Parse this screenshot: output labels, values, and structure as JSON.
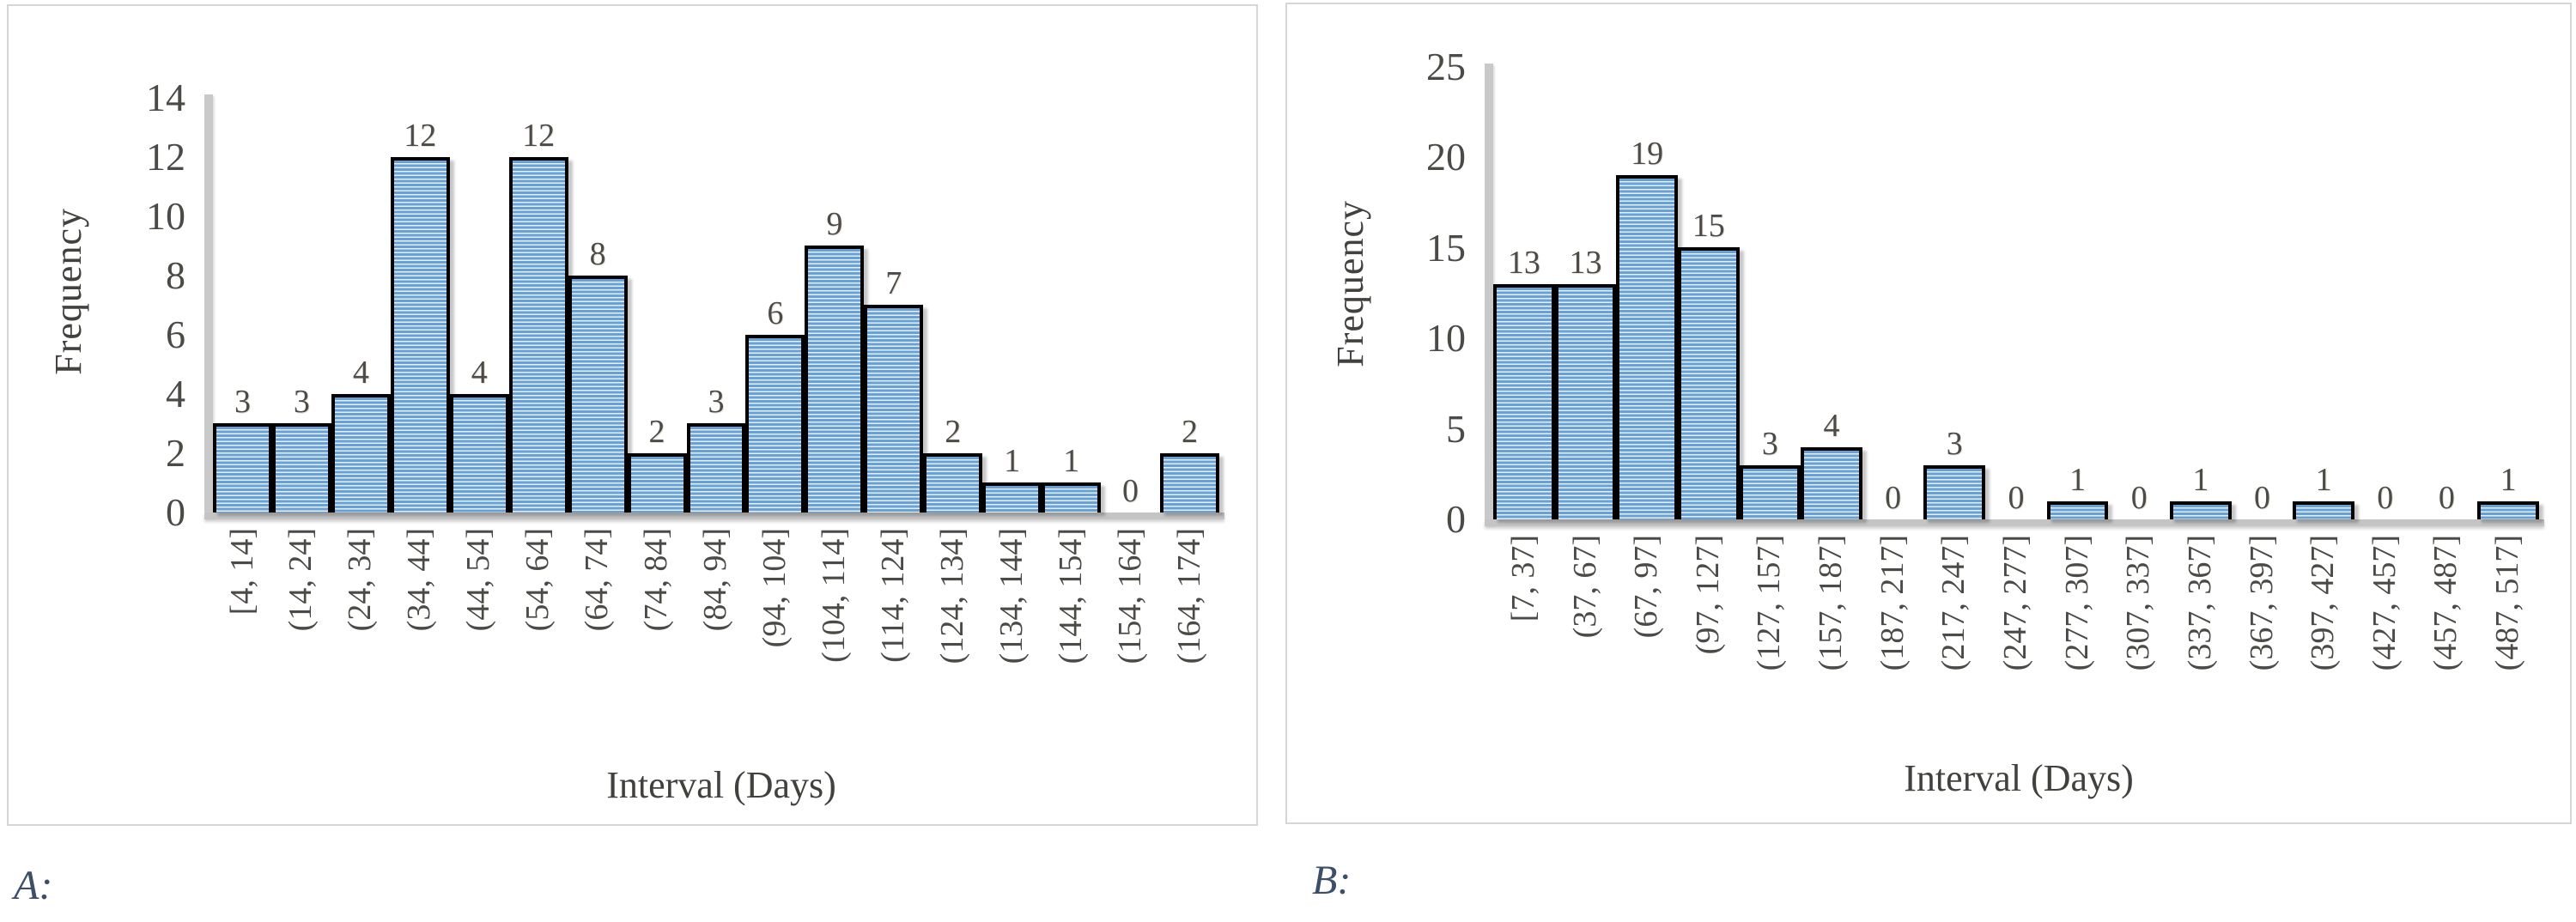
{
  "captions": {
    "a": "A:",
    "b": "B:"
  },
  "colors": {
    "bar_fill": "#68A1D7",
    "bar_stripe_highlight": "#E7F0FA",
    "bar_border": "#000000",
    "axis_line": "#C6C6C6",
    "tick_text": "#4C4A46",
    "axis_title_text": "#43413D",
    "caption_text": "#3D4E68",
    "panel_border": "#D6D6D6"
  },
  "chart_data": [
    {
      "type": "bar",
      "panel": "A",
      "title": "",
      "xlabel": "Interval (Days)",
      "ylabel": "Frequency",
      "categories": [
        "[4, 14]",
        "(14, 24]",
        "(24, 34]",
        "(34, 44]",
        "(44, 54]",
        "(54, 64]",
        "(64, 74]",
        "(74, 84]",
        "(84, 94]",
        "(94, 104]",
        "(104, 114]",
        "(114, 124]",
        "(124, 134]",
        "(134, 144]",
        "(144, 154]",
        "(154, 164]",
        "(164, 174]"
      ],
      "values": [
        3,
        3,
        4,
        12,
        4,
        12,
        8,
        2,
        3,
        6,
        9,
        7,
        2,
        1,
        1,
        0,
        2
      ],
      "bar_labels_shown": true,
      "ylim": [
        0,
        14
      ],
      "yticks": [
        0,
        2,
        4,
        6,
        8,
        10,
        12,
        14
      ],
      "grid": false,
      "legend": "none"
    },
    {
      "type": "bar",
      "panel": "B",
      "title": "",
      "xlabel": "Interval (Days)",
      "ylabel": "Frequency",
      "categories": [
        "[7, 37]",
        "(37, 67]",
        "(67, 97]",
        "(97, 127]",
        "(127, 157]",
        "(157, 187]",
        "(187, 217]",
        "(217, 247]",
        "(247, 277]",
        "(277, 307]",
        "(307, 337]",
        "(337, 367]",
        "(367, 397]",
        "(397, 427]",
        "(427, 457]",
        "(457, 487]",
        "(487, 517]"
      ],
      "values": [
        13,
        13,
        19,
        15,
        3,
        4,
        0,
        3,
        0,
        1,
        0,
        1,
        0,
        1,
        0,
        0,
        1
      ],
      "bar_labels_shown": true,
      "ylim": [
        0,
        25
      ],
      "yticks": [
        0,
        5,
        10,
        15,
        20,
        25
      ],
      "grid": false,
      "legend": "none"
    }
  ]
}
